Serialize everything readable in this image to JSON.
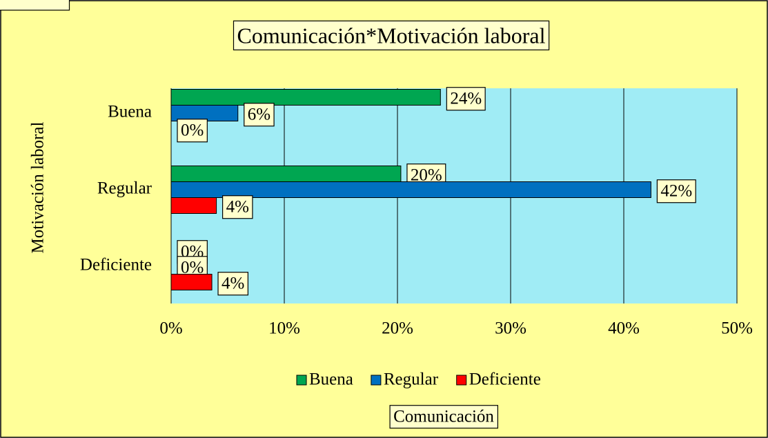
{
  "chart_data": {
    "type": "hbar",
    "title": "Comunicación*Motivación laboral",
    "x_label": "Comunicación",
    "y_label": "Motivación laboral",
    "categories": [
      "Buena",
      "Regular",
      "Deficiente"
    ],
    "series": [
      {
        "name": "Buena",
        "color": "#00a651",
        "values": [
          23.8,
          20.3,
          0
        ],
        "value_labels": [
          "24%",
          "20%",
          "0%"
        ]
      },
      {
        "name": "Regular",
        "color": "#0070c0",
        "values": [
          5.9,
          42.4,
          0
        ],
        "value_labels": [
          "6%",
          "42%",
          "0%"
        ]
      },
      {
        "name": "Deficiente",
        "color": "#ff0000",
        "values": [
          0,
          4.0,
          3.6
        ],
        "value_labels": [
          "0%",
          "4%",
          "4%"
        ]
      }
    ],
    "xlim": [
      0,
      50
    ],
    "xticks": [
      {
        "value": 0,
        "label": "0%"
      },
      {
        "value": 10,
        "label": "10%"
      },
      {
        "value": 20,
        "label": "20%"
      },
      {
        "value": 30,
        "label": "30%"
      },
      {
        "value": 40,
        "label": "40%"
      },
      {
        "value": 50,
        "label": "50%"
      }
    ],
    "grid": true,
    "legend": "bottom"
  }
}
